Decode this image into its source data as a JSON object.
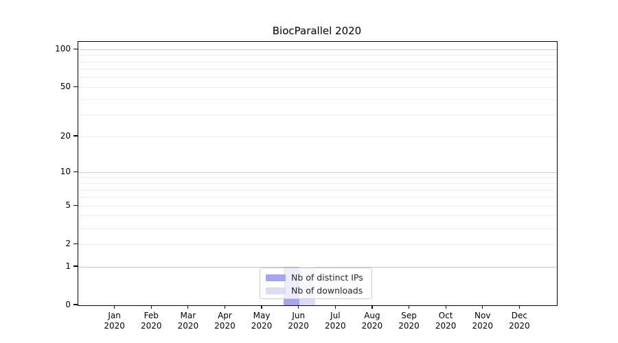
{
  "chart_data": {
    "type": "bar",
    "title": "BiocParallel 2020",
    "categories": [
      {
        "month": "Jan",
        "year": "2020"
      },
      {
        "month": "Feb",
        "year": "2020"
      },
      {
        "month": "Mar",
        "year": "2020"
      },
      {
        "month": "Apr",
        "year": "2020"
      },
      {
        "month": "May",
        "year": "2020"
      },
      {
        "month": "Jun",
        "year": "2020"
      },
      {
        "month": "Jul",
        "year": "2020"
      },
      {
        "month": "Aug",
        "year": "2020"
      },
      {
        "month": "Sep",
        "year": "2020"
      },
      {
        "month": "Oct",
        "year": "2020"
      },
      {
        "month": "Nov",
        "year": "2020"
      },
      {
        "month": "Dec",
        "year": "2020"
      }
    ],
    "series": [
      {
        "name": "Nb of distinct IPs",
        "color": "#a6a6f0",
        "values": [
          0,
          0,
          0,
          0,
          0,
          1,
          0,
          0,
          0,
          0,
          0,
          0
        ]
      },
      {
        "name": "Nb of downloads",
        "color": "#dcdcf5",
        "values": [
          0,
          0,
          0,
          0,
          0,
          1,
          0,
          0,
          0,
          0,
          0,
          0
        ]
      }
    ],
    "y_axis": {
      "scale": "log1p",
      "ylim": [
        0,
        115
      ],
      "tick_labels": [
        "0",
        "1",
        "2",
        "5",
        "10",
        "20",
        "50",
        "100"
      ],
      "tick_values": [
        0,
        1,
        2,
        5,
        10,
        20,
        50,
        100
      ],
      "major_grid_values": [
        1,
        10,
        100
      ],
      "minor_grid_values": [
        2,
        3,
        4,
        5,
        6,
        7,
        8,
        9,
        20,
        30,
        40,
        50,
        60,
        70,
        80,
        90
      ]
    },
    "legend_position": "lower center",
    "grid": true,
    "colors": {
      "major_grid": "#c9c9c9",
      "minor_grid": "#ececec",
      "axis": "#000000",
      "legend_border": "#cccccc",
      "background": "#ffffff"
    }
  }
}
